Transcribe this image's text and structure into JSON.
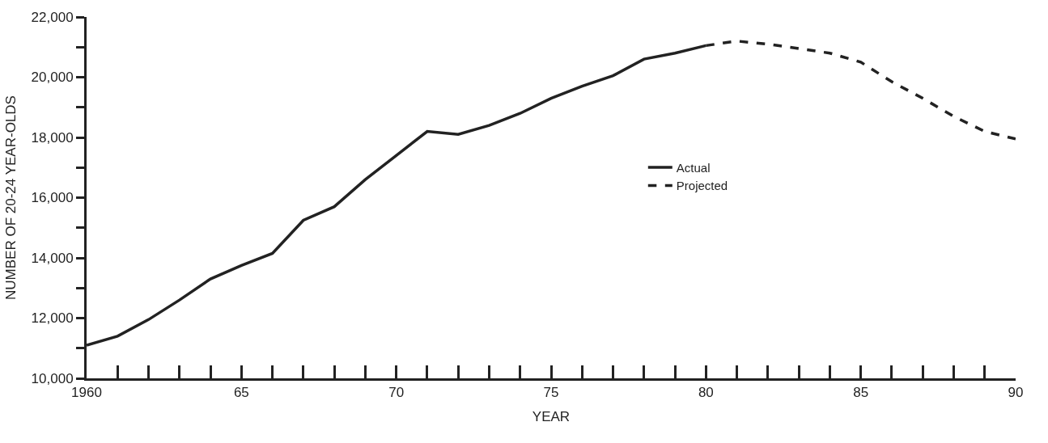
{
  "chart_data": {
    "type": "line",
    "xlabel": "YEAR",
    "ylabel": "NUMBER OF 20-24 YEAR-OLDS",
    "x": [
      1960,
      1961,
      1962,
      1963,
      1964,
      1965,
      1966,
      1967,
      1968,
      1969,
      1970,
      1971,
      1972,
      1973,
      1974,
      1975,
      1976,
      1977,
      1978,
      1979,
      1980
    ],
    "series": [
      {
        "name": "Actual",
        "color": "#222222",
        "line_style": "solid",
        "values": [
          11100,
          11400,
          11950,
          12600,
          13300,
          13750,
          14150,
          15250,
          15700,
          16600,
          17400,
          18200,
          18100,
          18400,
          18800,
          19300,
          19700,
          20050,
          20600,
          20800,
          21050
        ]
      },
      {
        "name": "Projected",
        "color": "#222222",
        "line_style": "dashed",
        "x": [
          1980,
          1981,
          1982,
          1983,
          1984,
          1985,
          1986,
          1987,
          1988,
          1989,
          1990
        ],
        "values": [
          21050,
          21200,
          21100,
          20950,
          20800,
          20500,
          19850,
          19300,
          18700,
          18200,
          17950
        ]
      }
    ],
    "xlim": [
      1960,
      1990
    ],
    "xticks": [
      {
        "value": 1960,
        "label": "1960"
      },
      {
        "value": 1961,
        "label": null
      },
      {
        "value": 1962,
        "label": null
      },
      {
        "value": 1963,
        "label": null
      },
      {
        "value": 1964,
        "label": null
      },
      {
        "value": 1965,
        "label": "65"
      },
      {
        "value": 1966,
        "label": null
      },
      {
        "value": 1967,
        "label": null
      },
      {
        "value": 1968,
        "label": null
      },
      {
        "value": 1969,
        "label": null
      },
      {
        "value": 1970,
        "label": "70"
      },
      {
        "value": 1971,
        "label": null
      },
      {
        "value": 1972,
        "label": null
      },
      {
        "value": 1973,
        "label": null
      },
      {
        "value": 1974,
        "label": null
      },
      {
        "value": 1975,
        "label": "75"
      },
      {
        "value": 1976,
        "label": null
      },
      {
        "value": 1977,
        "label": null
      },
      {
        "value": 1978,
        "label": null
      },
      {
        "value": 1979,
        "label": null
      },
      {
        "value": 1980,
        "label": "80"
      },
      {
        "value": 1981,
        "label": null
      },
      {
        "value": 1982,
        "label": null
      },
      {
        "value": 1983,
        "label": null
      },
      {
        "value": 1984,
        "label": null
      },
      {
        "value": 1985,
        "label": "85"
      },
      {
        "value": 1986,
        "label": null
      },
      {
        "value": 1987,
        "label": null
      },
      {
        "value": 1988,
        "label": null
      },
      {
        "value": 1989,
        "label": null
      },
      {
        "value": 1990,
        "label": "90"
      }
    ],
    "ylim": [
      10000,
      22000
    ],
    "yticks": [
      {
        "value": 10000,
        "label": "10,000"
      },
      {
        "value": 11000,
        "label": null
      },
      {
        "value": 12000,
        "label": "12,000"
      },
      {
        "value": 13000,
        "label": null
      },
      {
        "value": 14000,
        "label": "14,000"
      },
      {
        "value": 15000,
        "label": null
      },
      {
        "value": 16000,
        "label": "16,000"
      },
      {
        "value": 17000,
        "label": null
      },
      {
        "value": 18000,
        "label": "18,000"
      },
      {
        "value": 19000,
        "label": null
      },
      {
        "value": 20000,
        "label": "20,000"
      },
      {
        "value": 21000,
        "label": null
      },
      {
        "value": 22000,
        "label": "22,000"
      }
    ],
    "legend": "center"
  }
}
